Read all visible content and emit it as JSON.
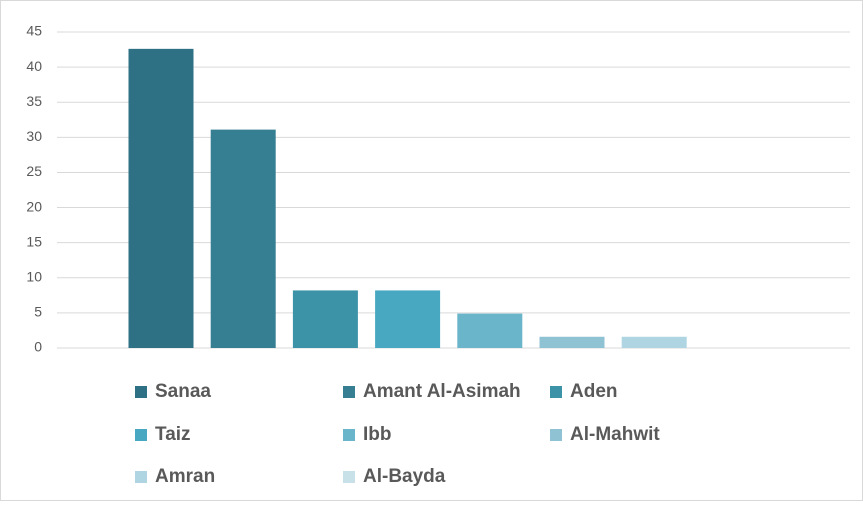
{
  "chart_data": {
    "type": "bar",
    "categories": [
      "Sanaa",
      "Amant Al-Asimah",
      "Aden",
      "Taiz",
      "Ibb",
      "Al-Mahwit",
      "Amran",
      "Al-Bayda"
    ],
    "values": [
      42.6,
      31.1,
      8.2,
      8.2,
      4.9,
      1.6,
      1.6,
      0
    ],
    "colors": [
      "#2e7184",
      "#367f92",
      "#3c93a8",
      "#48a8c1",
      "#6bb5cb",
      "#8fc2d3",
      "#aed5e1",
      "#c8e1e9"
    ],
    "ylim": [
      0,
      45
    ],
    "yticks": [
      0,
      5,
      10,
      15,
      20,
      25,
      30,
      35,
      40,
      45
    ],
    "grid": true,
    "legend": "bottom"
  }
}
